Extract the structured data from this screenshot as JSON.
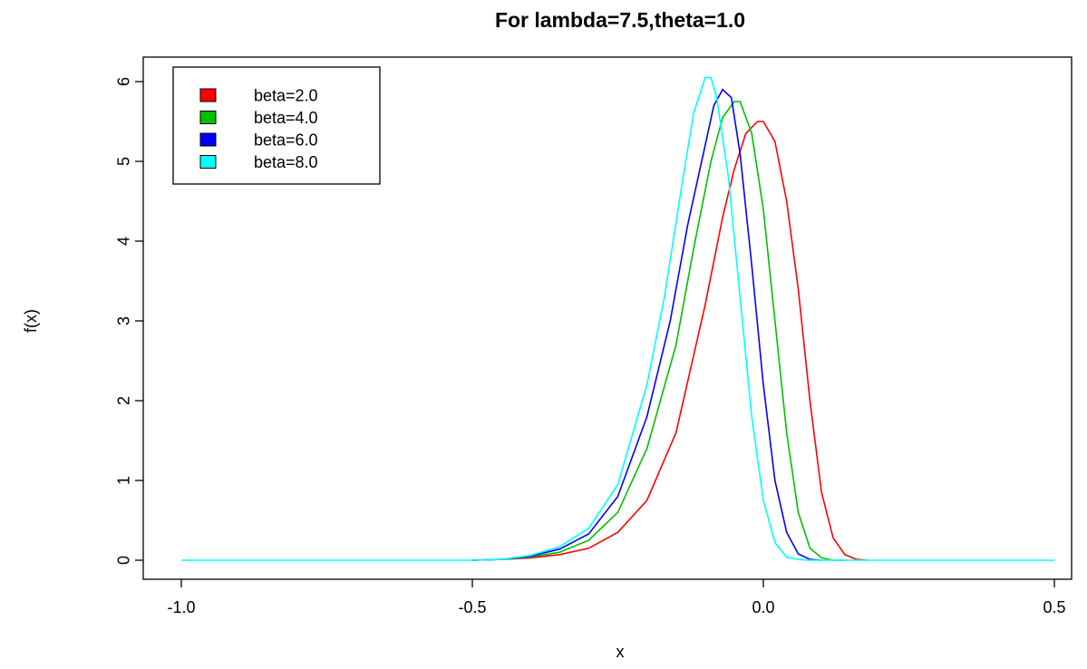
{
  "chart_data": {
    "type": "line",
    "title": "For lambda=7.5,theta=1.0",
    "xlabel": "x",
    "ylabel": "f(x)",
    "xlim": [
      -1.0,
      0.5
    ],
    "ylim": [
      0,
      6
    ],
    "x_ticks": [
      "-1.0",
      "-0.5",
      "0.0",
      "0.5"
    ],
    "y_ticks": [
      "0",
      "1",
      "2",
      "3",
      "4",
      "5",
      "6"
    ],
    "grid": false,
    "legend_position": "top-left",
    "series": [
      {
        "name": "beta=2.0",
        "color": "#ff0000",
        "x": [
          -0.5,
          -0.45,
          -0.4,
          -0.35,
          -0.3,
          -0.25,
          -0.2,
          -0.15,
          -0.1,
          -0.07,
          -0.05,
          -0.03,
          -0.01,
          0.0,
          0.02,
          0.04,
          0.06,
          0.08,
          0.1,
          0.12,
          0.14,
          0.16,
          0.18
        ],
        "y": [
          0.0,
          0.01,
          0.03,
          0.07,
          0.15,
          0.35,
          0.75,
          1.6,
          3.2,
          4.3,
          4.9,
          5.35,
          5.5,
          5.5,
          5.25,
          4.5,
          3.4,
          2.0,
          0.85,
          0.28,
          0.07,
          0.01,
          0.0
        ]
      },
      {
        "name": "beta=4.0",
        "color": "#00c000",
        "x": [
          -0.5,
          -0.45,
          -0.4,
          -0.35,
          -0.3,
          -0.25,
          -0.2,
          -0.15,
          -0.12,
          -0.09,
          -0.07,
          -0.05,
          -0.04,
          -0.02,
          0.0,
          0.02,
          0.04,
          0.06,
          0.08,
          0.1,
          0.12,
          0.14
        ],
        "y": [
          0.0,
          0.01,
          0.04,
          0.1,
          0.25,
          0.6,
          1.4,
          2.7,
          3.9,
          5.0,
          5.55,
          5.75,
          5.75,
          5.35,
          4.4,
          3.0,
          1.6,
          0.6,
          0.15,
          0.03,
          0.0,
          0.0
        ]
      },
      {
        "name": "beta=6.0",
        "color": "#0000ff",
        "x": [
          -0.5,
          -0.45,
          -0.4,
          -0.35,
          -0.3,
          -0.25,
          -0.2,
          -0.16,
          -0.13,
          -0.1,
          -0.085,
          -0.07,
          -0.055,
          -0.04,
          -0.02,
          0.0,
          0.02,
          0.04,
          0.06,
          0.08,
          0.1
        ],
        "y": [
          0.0,
          0.01,
          0.05,
          0.14,
          0.33,
          0.8,
          1.8,
          3.0,
          4.2,
          5.2,
          5.7,
          5.9,
          5.8,
          5.1,
          3.7,
          2.2,
          1.0,
          0.35,
          0.08,
          0.01,
          0.0
        ]
      },
      {
        "name": "beta=8.0",
        "color": "#00ffff",
        "x": [
          -1.0,
          -0.6,
          -0.5,
          -0.45,
          -0.4,
          -0.35,
          -0.3,
          -0.25,
          -0.2,
          -0.17,
          -0.14,
          -0.12,
          -0.1,
          -0.09,
          -0.08,
          -0.06,
          -0.04,
          -0.02,
          0.0,
          0.02,
          0.04,
          0.06,
          0.08,
          0.1,
          0.2,
          0.5
        ],
        "y": [
          0.0,
          0.0,
          0.0,
          0.01,
          0.06,
          0.17,
          0.4,
          0.95,
          2.2,
          3.3,
          4.7,
          5.6,
          6.05,
          6.05,
          5.8,
          4.8,
          3.3,
          1.8,
          0.75,
          0.22,
          0.04,
          0.01,
          0.0,
          0.0,
          0.0,
          0.0
        ]
      }
    ]
  }
}
